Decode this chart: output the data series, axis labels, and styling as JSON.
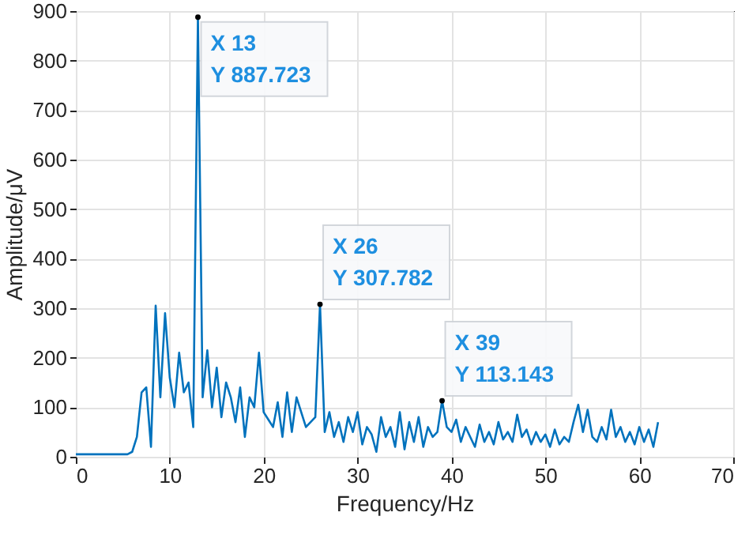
{
  "chart_data": {
    "type": "line",
    "xlabel": "Frequency/Hz",
    "ylabel": "Amplitude/μV",
    "xlim": [
      0,
      70
    ],
    "xticks": [
      0,
      10,
      20,
      30,
      40,
      50,
      60,
      70
    ],
    "ylim": [
      0,
      900
    ],
    "yticks": [
      0,
      100,
      200,
      300,
      400,
      500,
      600,
      700,
      800,
      900
    ],
    "grid": true,
    "x": [
      0,
      5.5,
      6,
      6.5,
      7,
      7.5,
      8,
      8.5,
      9,
      9.5,
      10,
      10.5,
      11,
      11.5,
      12,
      12.5,
      13,
      13.5,
      14,
      14.5,
      15,
      15.5,
      16,
      16.5,
      17,
      17.5,
      18,
      18.5,
      19,
      19.5,
      20,
      20.5,
      21,
      21.5,
      22,
      22.5,
      23,
      23.5,
      24,
      24.5,
      25,
      25.5,
      26,
      26.5,
      27,
      27.5,
      28,
      28.5,
      29,
      29.5,
      30,
      30.5,
      31,
      31.5,
      32,
      32.5,
      33,
      33.5,
      34,
      34.5,
      35,
      35.5,
      36,
      36.5,
      37,
      37.5,
      38,
      38.5,
      39,
      39.5,
      40,
      40.5,
      41,
      41.5,
      42,
      42.5,
      43,
      43.5,
      44,
      44.5,
      45,
      45.5,
      46,
      46.5,
      47,
      47.5,
      48,
      48.5,
      49,
      49.5,
      50,
      50.5,
      51,
      51.5,
      52,
      52.5,
      53,
      53.5,
      54,
      54.5,
      55,
      55.5,
      56,
      56.5,
      57,
      57.5,
      58,
      58.5,
      59,
      59.5,
      60,
      60.5,
      61,
      61.5,
      62
    ],
    "series": [
      {
        "color": "#0072bd",
        "values": [
          5,
          5,
          10,
          40,
          130,
          140,
          20,
          305,
          120,
          290,
          160,
          100,
          210,
          130,
          150,
          60,
          887.723,
          120,
          215,
          100,
          180,
          80,
          150,
          120,
          70,
          140,
          40,
          120,
          100,
          210,
          90,
          75,
          60,
          110,
          40,
          130,
          50,
          120,
          90,
          60,
          70,
          80,
          307.782,
          50,
          90,
          40,
          70,
          30,
          80,
          50,
          90,
          25,
          60,
          45,
          10,
          80,
          40,
          60,
          20,
          90,
          15,
          70,
          30,
          80,
          20,
          60,
          40,
          50,
          113.143,
          60,
          50,
          75,
          30,
          60,
          40,
          20,
          65,
          30,
          50,
          25,
          70,
          35,
          50,
          30,
          85,
          40,
          55,
          25,
          50,
          30,
          45,
          20,
          55,
          25,
          40,
          30,
          70,
          105,
          50,
          95,
          40,
          30,
          60,
          35,
          95,
          40,
          60,
          30,
          50,
          25,
          60,
          30,
          55,
          20,
          70
        ]
      }
    ],
    "annotations": [
      {
        "text": "X 13\nY 887.723",
        "x": 13,
        "y": 887.723
      },
      {
        "text": "X 26\nY 307.782",
        "x": 26,
        "y": 307.782
      },
      {
        "text": "X 39\nY 113.143",
        "x": 39,
        "y": 113.143
      }
    ]
  }
}
